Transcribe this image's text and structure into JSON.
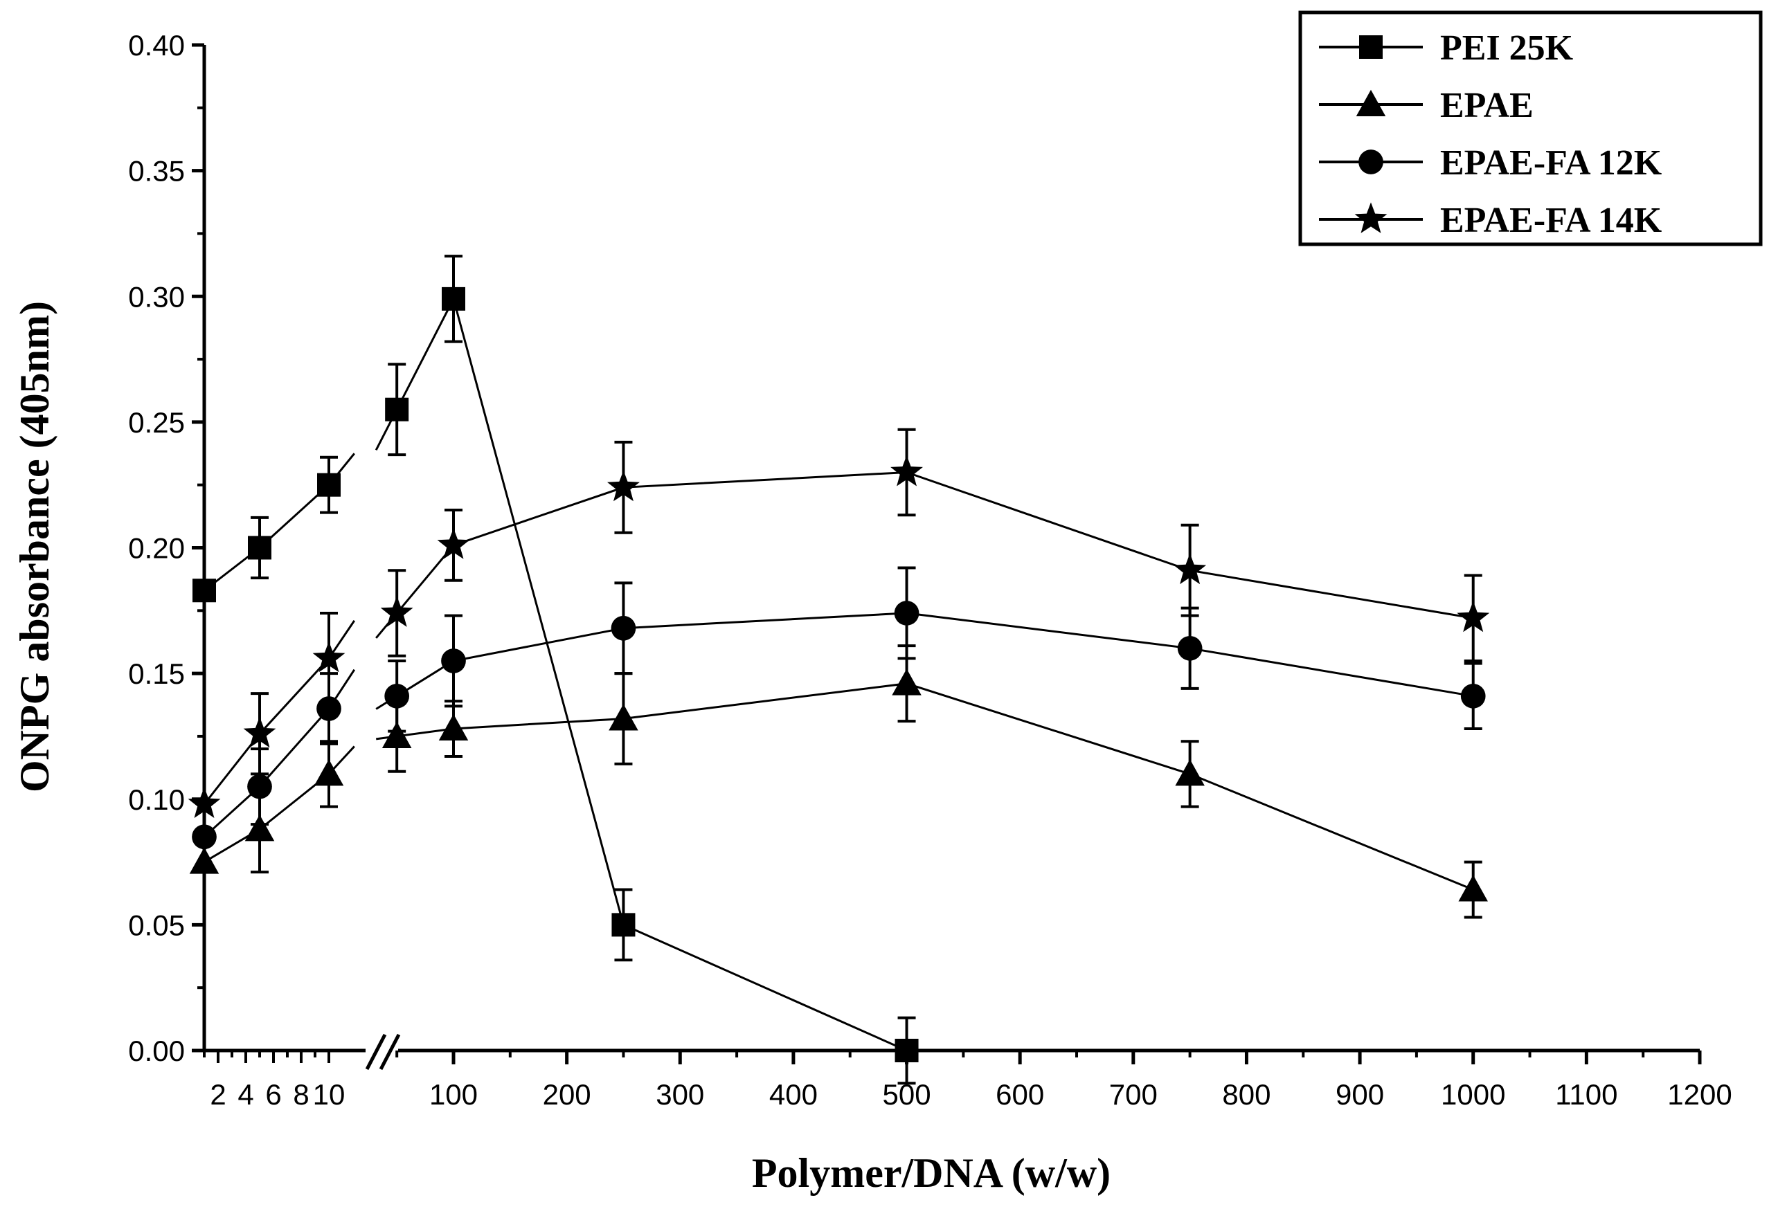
{
  "chart_data": {
    "type": "line",
    "title": "",
    "xlabel": "Polymer/DNA (w/w)",
    "ylabel": "ONPG absorbance (405nm)",
    "ylim": [
      0,
      0.4
    ],
    "grid": false,
    "legend_position": "top-right",
    "x_axis_break": "between 10 and 50",
    "y_ticks": [
      "0.00",
      "0.05",
      "0.10",
      "0.15",
      "0.20",
      "0.25",
      "0.30",
      "0.35",
      "0.40"
    ],
    "x_ticks_low": [
      "2",
      "4",
      "6",
      "8",
      "10"
    ],
    "x_ticks_high": [
      "100",
      "200",
      "300",
      "400",
      "500",
      "600",
      "700",
      "800",
      "900",
      "1000",
      "1100",
      "1200"
    ],
    "x_tick_labels_low": [
      "2",
      "4",
      "6",
      "8",
      "10"
    ],
    "series": [
      {
        "name": "PEI 25K",
        "marker": "square",
        "points": [
          {
            "x": 1,
            "y": 0.183,
            "err": 0
          },
          {
            "x": 5,
            "y": 0.2,
            "err": 0.012
          },
          {
            "x": 10,
            "y": 0.225,
            "err": 0.011
          },
          {
            "x": 50,
            "y": 0.255,
            "err": 0.018
          },
          {
            "x": 100,
            "y": 0.299,
            "err": 0.017
          },
          {
            "x": 250,
            "y": 0.05,
            "err": 0.014
          },
          {
            "x": 500,
            "y": 0.0,
            "err": 0.013
          }
        ]
      },
      {
        "name": "EPAE",
        "marker": "triangle",
        "points": [
          {
            "x": 1,
            "y": 0.075,
            "err": 0
          },
          {
            "x": 5,
            "y": 0.088,
            "err": 0.017
          },
          {
            "x": 10,
            "y": 0.11,
            "err": 0.013
          },
          {
            "x": 50,
            "y": 0.125,
            "err": 0.014
          },
          {
            "x": 100,
            "y": 0.128,
            "err": 0.011
          },
          {
            "x": 250,
            "y": 0.132,
            "err": 0.018
          },
          {
            "x": 500,
            "y": 0.146,
            "err": 0.015
          },
          {
            "x": 750,
            "y": 0.11,
            "err": 0.013
          },
          {
            "x": 1000,
            "y": 0.064,
            "err": 0.011
          }
        ]
      },
      {
        "name": "EPAE-FA 12K",
        "marker": "circle",
        "points": [
          {
            "x": 1,
            "y": 0.085,
            "err": 0
          },
          {
            "x": 5,
            "y": 0.105,
            "err": 0.015
          },
          {
            "x": 10,
            "y": 0.136,
            "err": 0.014
          },
          {
            "x": 50,
            "y": 0.141,
            "err": 0.014
          },
          {
            "x": 100,
            "y": 0.155,
            "err": 0.018
          },
          {
            "x": 250,
            "y": 0.168,
            "err": 0.018
          },
          {
            "x": 500,
            "y": 0.174,
            "err": 0.018
          },
          {
            "x": 750,
            "y": 0.16,
            "err": 0.016
          },
          {
            "x": 1000,
            "y": 0.141,
            "err": 0.013
          }
        ]
      },
      {
        "name": "EPAE-FA 14K",
        "marker": "star",
        "points": [
          {
            "x": 1,
            "y": 0.098,
            "err": 0
          },
          {
            "x": 5,
            "y": 0.126,
            "err": 0.016
          },
          {
            "x": 10,
            "y": 0.156,
            "err": 0.018
          },
          {
            "x": 50,
            "y": 0.174,
            "err": 0.017
          },
          {
            "x": 100,
            "y": 0.201,
            "err": 0.014
          },
          {
            "x": 250,
            "y": 0.224,
            "err": 0.018
          },
          {
            "x": 500,
            "y": 0.23,
            "err": 0.017
          },
          {
            "x": 750,
            "y": 0.191,
            "err": 0.018
          },
          {
            "x": 1000,
            "y": 0.172,
            "err": 0.017
          }
        ]
      }
    ]
  }
}
